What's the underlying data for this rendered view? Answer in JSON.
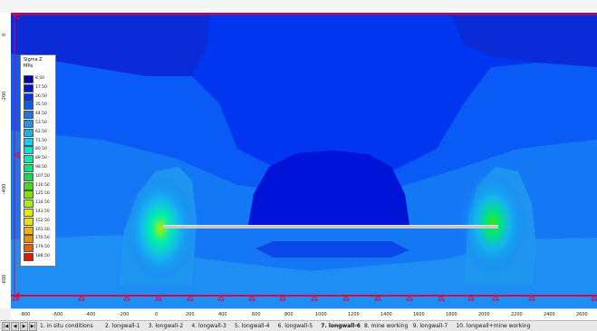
{
  "legend": {
    "title": "Sigma Z",
    "unit": "MPa",
    "items": [
      {
        "label": "8.50",
        "color": "#0000b4"
      },
      {
        "label": "17.50",
        "color": "#0014d8"
      },
      {
        "label": "26.50",
        "color": "#0036f0"
      },
      {
        "label": "35.50",
        "color": "#0a5af5"
      },
      {
        "label": "44.50",
        "color": "#1478f5"
      },
      {
        "label": "53.50",
        "color": "#1e96f0"
      },
      {
        "label": "62.50",
        "color": "#14b4f0"
      },
      {
        "label": "71.50",
        "color": "#00d2f0"
      },
      {
        "label": "80.50",
        "color": "#00e6d2"
      },
      {
        "label": "89.50",
        "color": "#00f0aa"
      },
      {
        "label": "98.50",
        "color": "#00e678"
      },
      {
        "label": "107.50",
        "color": "#14dc46"
      },
      {
        "label": "116.50",
        "color": "#46dc14"
      },
      {
        "label": "125.50",
        "color": "#78e600"
      },
      {
        "label": "134.50",
        "color": "#aaf000"
      },
      {
        "label": "143.50",
        "color": "#dcf000"
      },
      {
        "label": "152.50",
        "color": "#f0dc00"
      },
      {
        "label": "161.50",
        "color": "#f0b400"
      },
      {
        "label": "170.50",
        "color": "#f08c00"
      },
      {
        "label": "179.50",
        "color": "#f05a00"
      },
      {
        "label": "188.50",
        "color": "#e61400"
      }
    ]
  },
  "x_axis_ticks": [
    "-800",
    "-600",
    "-400",
    "-200",
    "0",
    "200",
    "400",
    "600",
    "800",
    "1000",
    "1200",
    "1400",
    "1600",
    "1800",
    "2000",
    "2200",
    "2400",
    "2600"
  ],
  "y_axis_ticks": [
    "0",
    "-200",
    "-400",
    "-600"
  ],
  "tabs": [
    {
      "label": "1. in situ conditions",
      "active": false
    },
    {
      "label": "2. longwall-1",
      "active": false
    },
    {
      "label": "3. longwall-2",
      "active": false
    },
    {
      "label": "4. longwall-3",
      "active": false
    },
    {
      "label": "5. longwall-4",
      "active": false
    },
    {
      "label": "6. longwall-5",
      "active": false
    },
    {
      "label": "7. longwall-6",
      "active": true
    },
    {
      "label": "8. mine working",
      "active": false
    },
    {
      "label": "9. longwall-7",
      "active": false
    },
    {
      "label": "10. longwall+mine working",
      "active": false
    }
  ],
  "nav": {
    "first": "|◀",
    "prev": "◀",
    "next": "▶",
    "last": "▶|"
  }
}
